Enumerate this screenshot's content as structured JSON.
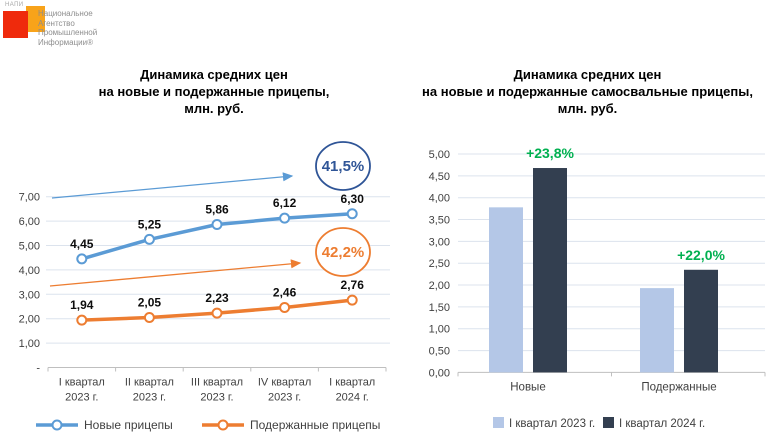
{
  "logo": {
    "abbr": "НАПИ",
    "name_lines": [
      "Национальное",
      "Агентство",
      "Промышленной",
      "Информации®"
    ],
    "red_color": "#EF2A0C",
    "orange_color": "#F8A31A"
  },
  "chart_data": [
    {
      "type": "line",
      "title": "Динамика средних цен на новые и подержанные прицепы, млн. руб.",
      "title_lines": [
        "Динамика средних цен",
        "на новые и подержанные прицепы,",
        "млн. руб."
      ],
      "ylim": [
        0,
        7
      ],
      "grid": true,
      "legend_position": "bottom",
      "categories": [
        [
          "I квартал",
          "2023 г."
        ],
        [
          "II квартал",
          "2023 г."
        ],
        [
          "III квартал",
          "2023 г."
        ],
        [
          "IV квартал",
          "2023 г."
        ],
        [
          "I квартал",
          "2024 г."
        ]
      ],
      "yticks": [
        {
          "v": 7,
          "label": "7,00"
        },
        {
          "v": 6,
          "label": "6,00"
        },
        {
          "v": 5,
          "label": "5,00"
        },
        {
          "v": 4,
          "label": "4,00"
        },
        {
          "v": 3,
          "label": "3,00"
        },
        {
          "v": 2,
          "label": "2,00"
        },
        {
          "v": 1,
          "label": "1,00"
        },
        {
          "v": 0,
          "label": "-"
        }
      ],
      "series": [
        {
          "name": "Новые прицепы",
          "color": "#5B9BD5",
          "badge_color": "#2F5597",
          "values": [
            4.45,
            5.25,
            5.86,
            6.12,
            6.3
          ],
          "labels": [
            "4,45",
            "5,25",
            "5,86",
            "6,12",
            "6,30"
          ],
          "growth_badge": "41,5%"
        },
        {
          "name": "Подержанные прицепы",
          "color": "#ED7D31",
          "badge_color": "#ED7D31",
          "values": [
            1.94,
            2.05,
            2.23,
            2.46,
            2.76
          ],
          "labels": [
            "1,94",
            "2,05",
            "2,23",
            "2,46",
            "2,76"
          ],
          "growth_badge": "42,2%"
        }
      ]
    },
    {
      "type": "bar",
      "title": "Динамика средних цен на новые и подержанные самосвальные прицепы, млн. руб.",
      "title_lines": [
        "Динамика средних цен",
        "на новые и подержанные самосвальные прицепы,",
        "млн. руб."
      ],
      "ylim": [
        0,
        5
      ],
      "grid": true,
      "legend_position": "bottom",
      "categories": [
        "Новые",
        "Подержанные"
      ],
      "yticks": [
        {
          "v": 5,
          "label": "5,00"
        },
        {
          "v": 4.5,
          "label": "4,50"
        },
        {
          "v": 4,
          "label": "4,00"
        },
        {
          "v": 3.5,
          "label": "3,50"
        },
        {
          "v": 3,
          "label": "3,00"
        },
        {
          "v": 2.5,
          "label": "2,50"
        },
        {
          "v": 2,
          "label": "2,00"
        },
        {
          "v": 1.5,
          "label": "1,50"
        },
        {
          "v": 1,
          "label": "1,00"
        },
        {
          "v": 0.5,
          "label": "0,50"
        },
        {
          "v": 0,
          "label": "0,00"
        }
      ],
      "series": [
        {
          "name": "I квартал 2023 г.",
          "color": "#B4C7E7",
          "values": [
            3.78,
            1.93
          ]
        },
        {
          "name": "I квартал 2024 г.",
          "color": "#333F50",
          "values": [
            4.68,
            2.35
          ]
        }
      ],
      "growth_labels": [
        "+23,8%",
        "+22,0%"
      ],
      "growth_color": "#00B050"
    }
  ]
}
